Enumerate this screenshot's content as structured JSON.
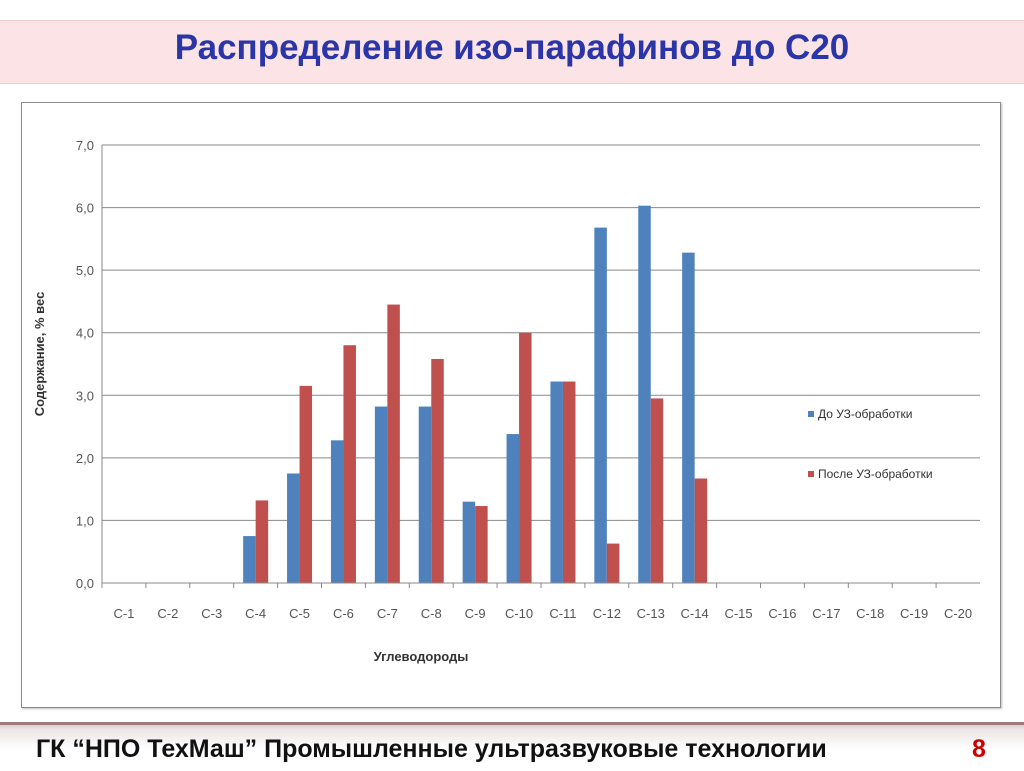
{
  "slide": {
    "title": "Распределение изо-парафинов до С20",
    "footer": "ГК “НПО ТехМаш”  Промышленные ультразвуковые технологии",
    "page_number": "8"
  },
  "chart_data": {
    "type": "bar",
    "title": "",
    "xlabel": "Углеводороды",
    "ylabel": "Содержание, % вес",
    "ylim": [
      0,
      7
    ],
    "ytick_values": [
      0,
      1,
      2,
      3,
      4,
      5,
      6,
      7
    ],
    "ytick_labels": [
      "0,0",
      "1,0",
      "2,0",
      "3,0",
      "4,0",
      "5,0",
      "6,0",
      "7,0"
    ],
    "grid": "horizontal",
    "legend_position": "right",
    "categories": [
      "C-1",
      "C-2",
      "C-3",
      "C-4",
      "C-5",
      "C-6",
      "C-7",
      "C-8",
      "C-9",
      "C-10",
      "C-11",
      "C-12",
      "C-13",
      "C-14",
      "C-15",
      "C-16",
      "C-17",
      "C-18",
      "C-19",
      "C-20"
    ],
    "series": [
      {
        "name": "До УЗ-обработки",
        "color": "#4f81bd",
        "values": [
          0,
          0,
          0,
          0.75,
          1.75,
          2.28,
          2.82,
          2.82,
          1.3,
          2.38,
          3.22,
          5.68,
          6.03,
          5.28,
          0,
          0,
          0,
          0,
          0,
          0
        ]
      },
      {
        "name": "После УЗ-обработки",
        "color": "#c0504d",
        "values": [
          0,
          0,
          0,
          1.32,
          3.15,
          3.8,
          4.45,
          3.58,
          1.23,
          4.0,
          3.22,
          0.63,
          2.95,
          1.67,
          0,
          0,
          0,
          0,
          0,
          0
        ]
      }
    ]
  }
}
